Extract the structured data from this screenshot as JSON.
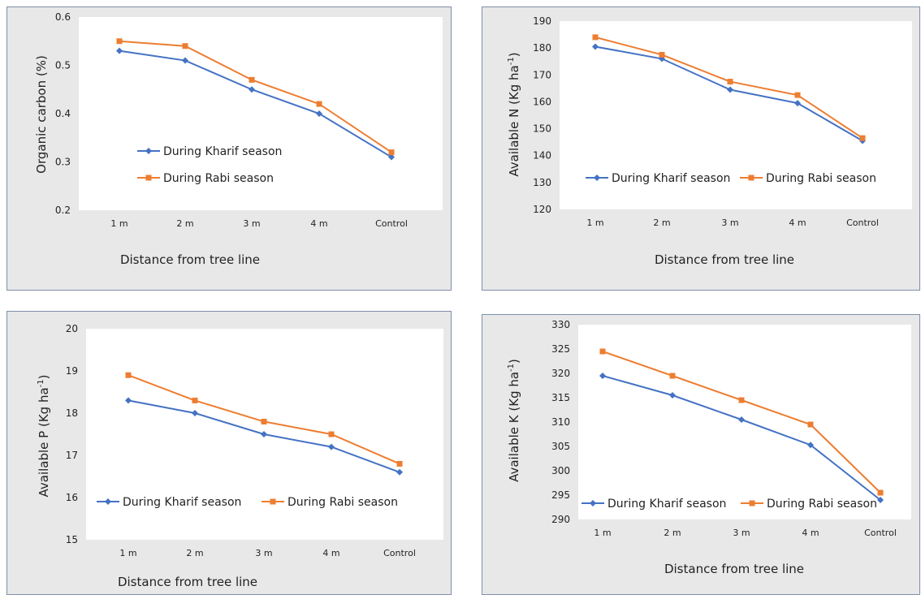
{
  "chart_data": [
    {
      "type": "line",
      "title": "",
      "ylabel": "Organic carbon (%)",
      "xlabel": "Distance from tree line",
      "categories": [
        "1 m",
        "2 m",
        "3 m",
        "4 m",
        "Control"
      ],
      "ylim": [
        0.2,
        0.6
      ],
      "yticks": [
        "0.2",
        "0.3",
        "0.4",
        "0.5",
        "0.6"
      ],
      "grid": false,
      "legend_placement": "center-left",
      "series": [
        {
          "name": "During Kharif season",
          "color": "#4472c4",
          "marker": "diamond",
          "values": [
            0.53,
            0.51,
            0.45,
            0.4,
            0.31
          ]
        },
        {
          "name": "During Rabi season",
          "color": "#ed7d31",
          "marker": "square",
          "values": [
            0.55,
            0.54,
            0.47,
            0.42,
            0.32
          ]
        }
      ]
    },
    {
      "type": "line",
      "title": "",
      "ylabel": "Available N (Kg ha-1)",
      "xlabel": "Distance from tree line",
      "categories": [
        "1 m",
        "2 m",
        "3 m",
        "4 m",
        "Control"
      ],
      "ylim": [
        120,
        190
      ],
      "yticks": [
        "120",
        "130",
        "140",
        "150",
        "160",
        "170",
        "180",
        "190"
      ],
      "grid": false,
      "legend_placement": "bottom",
      "series": [
        {
          "name": "During Kharif season",
          "color": "#4472c4",
          "marker": "diamond",
          "values": [
            180.5,
            176,
            164.5,
            159.5,
            145.5
          ]
        },
        {
          "name": "During Rabi season",
          "color": "#ed7d31",
          "marker": "square",
          "values": [
            184,
            177.5,
            167.5,
            162.5,
            146.5
          ]
        }
      ]
    },
    {
      "type": "line",
      "title": "",
      "ylabel": "Available P (Kg ha-1)",
      "xlabel": "Distance from tree line",
      "categories": [
        "1 m",
        "2 m",
        "3 m",
        "4 m",
        "Control"
      ],
      "ylim": [
        15,
        20
      ],
      "yticks": [
        "15",
        "16",
        "17",
        "18",
        "19",
        "20"
      ],
      "grid": false,
      "legend_placement": "bottom",
      "series": [
        {
          "name": "During Kharif season",
          "color": "#4472c4",
          "marker": "diamond",
          "values": [
            18.3,
            18.0,
            17.5,
            17.2,
            16.6
          ]
        },
        {
          "name": "During Rabi season",
          "color": "#ed7d31",
          "marker": "square",
          "values": [
            18.9,
            18.3,
            17.8,
            17.5,
            16.8
          ]
        }
      ]
    },
    {
      "type": "line",
      "title": "",
      "ylabel": "Available K (Kg ha-1)",
      "xlabel": "Distance from tree line",
      "categories": [
        "1 m",
        "2 m",
        "3 m",
        "4 m",
        "Control"
      ],
      "ylim": [
        290,
        330
      ],
      "yticks": [
        "290",
        "295",
        "300",
        "305",
        "310",
        "315",
        "320",
        "325",
        "330"
      ],
      "grid": false,
      "legend_placement": "bottom",
      "series": [
        {
          "name": "During Kharif season",
          "color": "#4472c4",
          "marker": "diamond",
          "values": [
            319.5,
            315.5,
            310.5,
            305.3,
            294
          ]
        },
        {
          "name": "During Rabi season",
          "color": "#ed7d31",
          "marker": "square",
          "values": [
            324.5,
            319.5,
            314.5,
            309.5,
            295.5
          ]
        }
      ]
    }
  ]
}
